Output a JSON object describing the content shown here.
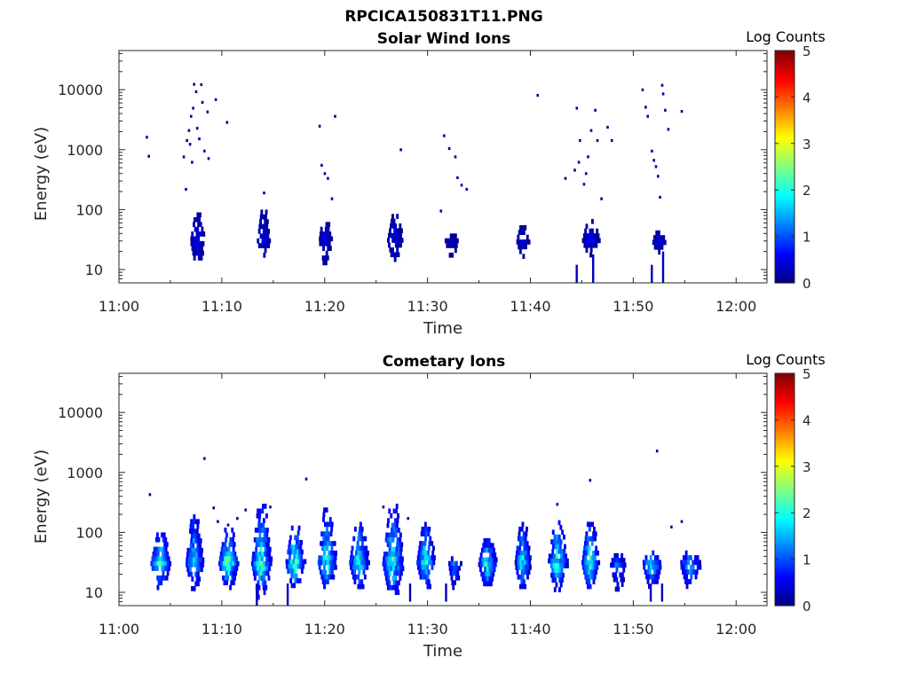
{
  "figure": {
    "title": "RPCICA150831T11.PNG"
  },
  "chart_data": [
    {
      "type": "heatmap",
      "title": "Solar Wind Ions",
      "xlabel": "Time",
      "ylabel": "Energy (eV)",
      "xtick_labels": [
        "11:00",
        "11:10",
        "11:20",
        "11:30",
        "11:40",
        "11:50",
        "12:00"
      ],
      "xlim_minutes": [
        0,
        63
      ],
      "ytick_labels": [
        "10",
        "100",
        "1000",
        "10000"
      ],
      "ylim": [
        6,
        45000
      ],
      "y_scale": "log",
      "colorbar": {
        "title": "Log Counts",
        "range": [
          0,
          5
        ],
        "tick_labels": [
          "0",
          "1",
          "2",
          "3",
          "4",
          "5"
        ],
        "colormap": "jet"
      },
      "blobs": [
        {
          "t": 7.6,
          "w": 1.4,
          "emin": 12,
          "emax": 90,
          "peak": 0.55
        },
        {
          "t": 14.0,
          "w": 1.2,
          "emin": 18,
          "emax": 100,
          "peak": 0.5
        },
        {
          "t": 20.0,
          "w": 1.2,
          "emin": 14,
          "emax": 90,
          "peak": 0.5
        },
        {
          "t": 26.8,
          "w": 1.5,
          "emin": 14,
          "emax": 85,
          "peak": 0.5
        },
        {
          "t": 32.3,
          "w": 1.3,
          "emin": 18,
          "emax": 40,
          "peak": 0.4
        },
        {
          "t": 39.2,
          "w": 1.2,
          "emin": 18,
          "emax": 55,
          "peak": 0.5
        },
        {
          "t": 45.8,
          "w": 1.6,
          "emin": 18,
          "emax": 70,
          "peak": 0.55
        },
        {
          "t": 52.5,
          "w": 1.4,
          "emin": 18,
          "emax": 45,
          "peak": 0.45
        }
      ],
      "stems": [
        {
          "t": 44.4,
          "emin": 6,
          "emax": 12
        },
        {
          "t": 46.0,
          "emin": 6,
          "emax": 18
        },
        {
          "t": 51.7,
          "emin": 6,
          "emax": 12
        },
        {
          "t": 52.8,
          "emin": 6,
          "emax": 20
        }
      ],
      "points": [
        [
          2.6,
          1700
        ],
        [
          2.8,
          820
        ],
        [
          6.2,
          800
        ],
        [
          6.4,
          230
        ],
        [
          6.5,
          1500
        ],
        [
          6.7,
          2200
        ],
        [
          6.8,
          1300
        ],
        [
          6.9,
          3800
        ],
        [
          7.0,
          650
        ],
        [
          7.1,
          5200
        ],
        [
          7.2,
          13000
        ],
        [
          7.4,
          9800
        ],
        [
          7.5,
          2400
        ],
        [
          7.7,
          1600
        ],
        [
          7.9,
          12800
        ],
        [
          8.0,
          6500
        ],
        [
          8.2,
          1000
        ],
        [
          8.5,
          4500
        ],
        [
          8.6,
          750
        ],
        [
          9.3,
          7200
        ],
        [
          10.4,
          3000
        ],
        [
          14.0,
          200
        ],
        [
          19.4,
          2600
        ],
        [
          19.6,
          580
        ],
        [
          19.9,
          420
        ],
        [
          20.2,
          350
        ],
        [
          20.6,
          160
        ],
        [
          20.9,
          3800
        ],
        [
          27.3,
          1050
        ],
        [
          31.2,
          100
        ],
        [
          31.5,
          1800
        ],
        [
          32.0,
          1100
        ],
        [
          32.6,
          800
        ],
        [
          32.8,
          360
        ],
        [
          33.2,
          270
        ],
        [
          33.7,
          230
        ],
        [
          40.6,
          8500
        ],
        [
          43.3,
          350
        ],
        [
          44.2,
          480
        ],
        [
          44.4,
          5200
        ],
        [
          44.6,
          650
        ],
        [
          44.7,
          1500
        ],
        [
          45.1,
          280
        ],
        [
          45.3,
          420
        ],
        [
          45.5,
          800
        ],
        [
          45.8,
          2200
        ],
        [
          46.2,
          4800
        ],
        [
          46.4,
          1500
        ],
        [
          46.8,
          160
        ],
        [
          47.4,
          2500
        ],
        [
          47.8,
          1500
        ],
        [
          50.8,
          10500
        ],
        [
          51.1,
          5400
        ],
        [
          51.3,
          3800
        ],
        [
          51.7,
          1000
        ],
        [
          51.9,
          700
        ],
        [
          52.1,
          550
        ],
        [
          52.3,
          380
        ],
        [
          52.5,
          170
        ],
        [
          52.7,
          12500
        ],
        [
          52.8,
          9000
        ],
        [
          53.0,
          4800
        ],
        [
          53.3,
          2300
        ],
        [
          54.6,
          4600
        ]
      ]
    },
    {
      "type": "heatmap",
      "title": "Cometary Ions",
      "xlabel": "Time",
      "ylabel": "Energy (eV)",
      "xtick_labels": [
        "11:00",
        "11:10",
        "11:20",
        "11:30",
        "11:40",
        "11:50",
        "12:00"
      ],
      "xlim_minutes": [
        0,
        63
      ],
      "ytick_labels": [
        "10",
        "100",
        "1000",
        "10000"
      ],
      "ylim": [
        6,
        45000
      ],
      "y_scale": "log",
      "colorbar": {
        "title": "Log Counts",
        "range": [
          0,
          5
        ],
        "tick_labels": [
          "0",
          "1",
          "2",
          "3",
          "4",
          "5"
        ],
        "colormap": "jet"
      },
      "blobs": [
        {
          "t": 4.0,
          "w": 1.9,
          "emin": 12,
          "emax": 100,
          "peak": 2.2
        },
        {
          "t": 7.3,
          "w": 1.7,
          "emin": 12,
          "emax": 200,
          "peak": 1.9
        },
        {
          "t": 10.6,
          "w": 1.9,
          "emin": 12,
          "emax": 120,
          "peak": 2.3
        },
        {
          "t": 13.8,
          "w": 1.9,
          "emin": 8,
          "emax": 300,
          "peak": 2.2
        },
        {
          "t": 17.1,
          "w": 1.9,
          "emin": 12,
          "emax": 130,
          "peak": 2.2
        },
        {
          "t": 20.2,
          "w": 1.8,
          "emin": 12,
          "emax": 260,
          "peak": 2.1
        },
        {
          "t": 23.3,
          "w": 1.9,
          "emin": 12,
          "emax": 150,
          "peak": 2.0
        },
        {
          "t": 26.6,
          "w": 2.0,
          "emin": 8,
          "emax": 300,
          "peak": 2.1
        },
        {
          "t": 29.8,
          "w": 1.8,
          "emin": 12,
          "emax": 150,
          "peak": 2.0
        },
        {
          "t": 32.6,
          "w": 1.2,
          "emin": 12,
          "emax": 40,
          "peak": 1.4
        },
        {
          "t": 35.8,
          "w": 1.8,
          "emin": 12,
          "emax": 80,
          "peak": 2.1
        },
        {
          "t": 39.2,
          "w": 1.5,
          "emin": 12,
          "emax": 150,
          "peak": 1.9
        },
        {
          "t": 42.6,
          "w": 1.9,
          "emin": 12,
          "emax": 160,
          "peak": 2.1
        },
        {
          "t": 45.8,
          "w": 1.7,
          "emin": 12,
          "emax": 150,
          "peak": 2.2
        },
        {
          "t": 48.5,
          "w": 1.6,
          "emin": 12,
          "emax": 45,
          "peak": 1.3
        },
        {
          "t": 51.8,
          "w": 1.9,
          "emin": 12,
          "emax": 50,
          "peak": 1.8
        },
        {
          "t": 55.5,
          "w": 2.0,
          "emin": 12,
          "emax": 50,
          "peak": 1.7
        }
      ],
      "stems": [
        {
          "t": 13.3,
          "emin": 6,
          "emax": 14
        },
        {
          "t": 16.3,
          "emin": 6,
          "emax": 14
        },
        {
          "t": 28.2,
          "emin": 7,
          "emax": 14
        },
        {
          "t": 31.7,
          "emin": 7,
          "emax": 14
        },
        {
          "t": 51.6,
          "emin": 7,
          "emax": 14
        },
        {
          "t": 52.7,
          "emin": 7,
          "emax": 14
        }
      ],
      "points": [
        [
          2.9,
          450
        ],
        [
          8.2,
          1800
        ],
        [
          9.1,
          270
        ],
        [
          9.5,
          160
        ],
        [
          10.5,
          140
        ],
        [
          11.4,
          180
        ],
        [
          12.2,
          250
        ],
        [
          14.6,
          280
        ],
        [
          18.1,
          820
        ],
        [
          25.6,
          280
        ],
        [
          28.0,
          180
        ],
        [
          42.5,
          310
        ],
        [
          45.7,
          780
        ],
        [
          52.2,
          2400
        ],
        [
          53.6,
          130
        ],
        [
          54.6,
          160
        ]
      ]
    }
  ]
}
